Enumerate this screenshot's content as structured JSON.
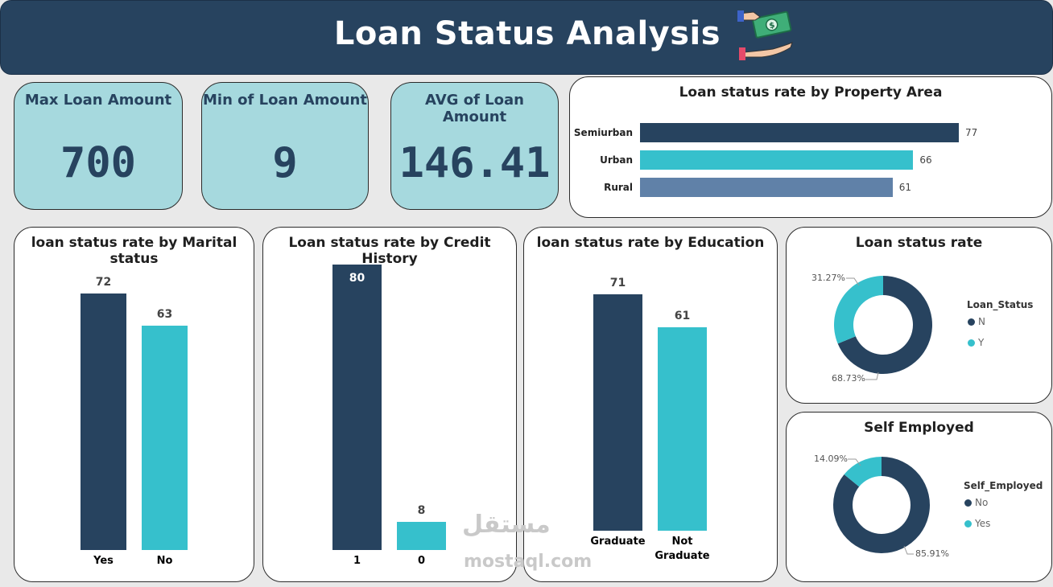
{
  "header": {
    "title": "Loan Status Analysis",
    "icon": "money-hand-icon"
  },
  "kpis": [
    {
      "label": "Max Loan Amount",
      "value": "700"
    },
    {
      "label": "Min of Loan Amount",
      "value": "9"
    },
    {
      "label": "AVG of Loan Amount",
      "value": "146.41"
    }
  ],
  "colors": {
    "navy": "#27435f",
    "teal": "#36c0cc",
    "steel": "#6081a8",
    "kpi_bg": "#a6d9de"
  },
  "watermark": {
    "text": "مستقل",
    "sub": "mostaql.com"
  },
  "chart_data": [
    {
      "type": "bar",
      "orientation": "horizontal",
      "title": "Loan status rate by Property Area",
      "categories": [
        "Semiurban",
        "Urban",
        "Rural"
      ],
      "values": [
        77,
        66,
        61
      ],
      "colors": [
        "#27435f",
        "#36c0cc",
        "#6081a8"
      ]
    },
    {
      "type": "bar",
      "title": "loan status rate by Marital status",
      "categories": [
        "Yes",
        "No"
      ],
      "values": [
        72,
        63
      ],
      "colors": [
        "#27435f",
        "#36c0cc"
      ]
    },
    {
      "type": "bar",
      "title": "Loan status rate by Credit History",
      "categories": [
        "1",
        "0"
      ],
      "values": [
        80,
        8
      ],
      "colors": [
        "#27435f",
        "#36c0cc"
      ]
    },
    {
      "type": "bar",
      "title": "loan status rate by Education",
      "categories": [
        "Graduate",
        "Not Graduate"
      ],
      "category_lines": [
        [
          "Graduate"
        ],
        [
          "Not",
          "Graduate"
        ]
      ],
      "values": [
        71,
        61
      ],
      "colors": [
        "#27435f",
        "#36c0cc"
      ]
    },
    {
      "type": "pie",
      "donut": true,
      "title": "Loan status rate",
      "legend_title": "Loan_Status",
      "labels": [
        "N",
        "Y"
      ],
      "values": [
        68.73,
        31.27
      ],
      "value_labels": [
        "68.73%",
        "31.27%"
      ],
      "colors": [
        "#27435f",
        "#36c0cc"
      ]
    },
    {
      "type": "pie",
      "donut": true,
      "title": "Self Employed",
      "legend_title": "Self_Employed",
      "labels": [
        "No",
        "Yes"
      ],
      "values": [
        85.91,
        14.09
      ],
      "value_labels": [
        "85.91%",
        "14.09%"
      ],
      "colors": [
        "#27435f",
        "#36c0cc"
      ]
    }
  ]
}
